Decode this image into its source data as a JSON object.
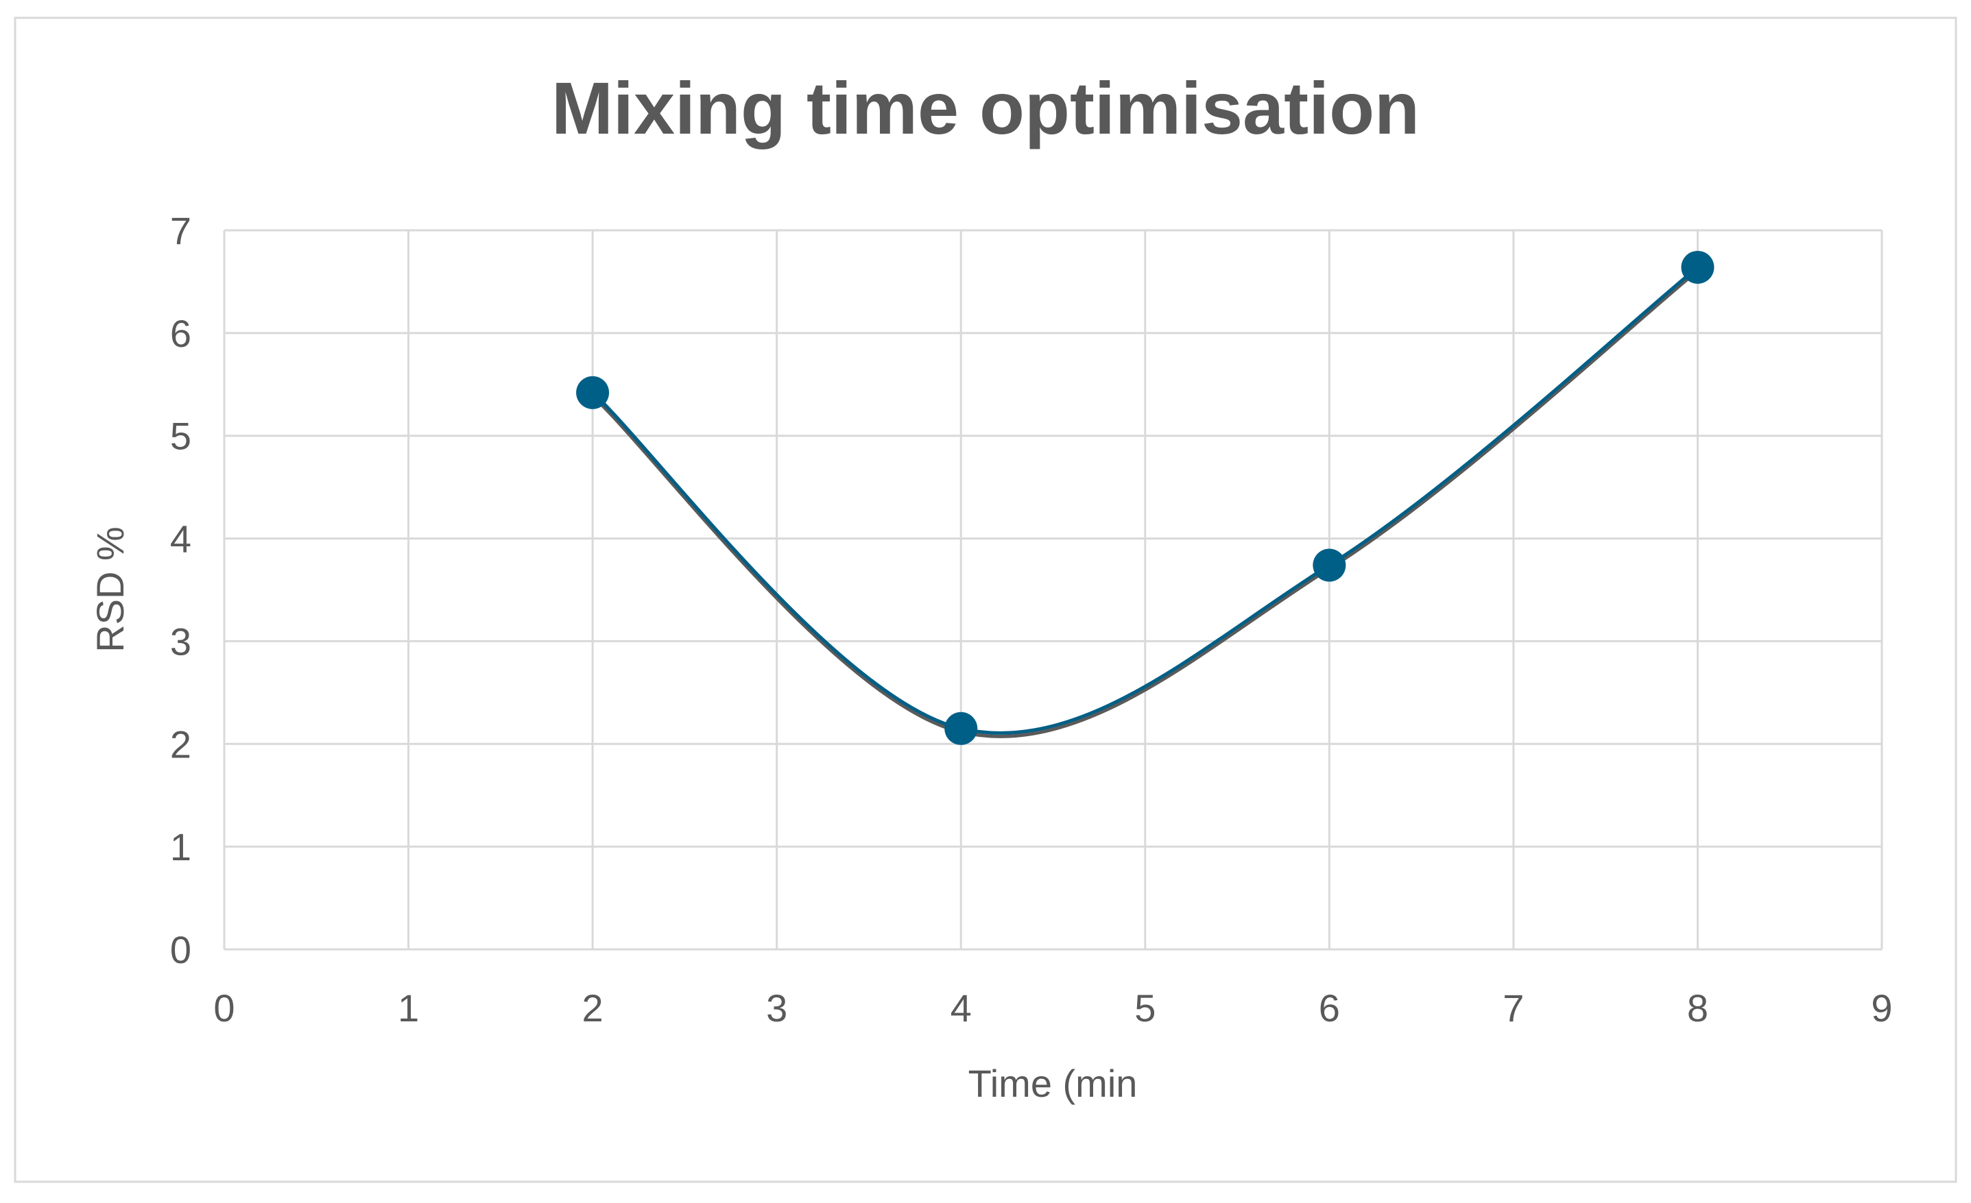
{
  "chart_data": {
    "type": "scatter",
    "title": "Mixing time optimisation",
    "xlabel": "Time (min",
    "ylabel": "RSD %",
    "xlim": [
      0,
      9
    ],
    "ylim": [
      0,
      7
    ],
    "x_ticks": [
      0,
      1,
      2,
      3,
      4,
      5,
      6,
      7,
      8,
      9
    ],
    "y_ticks": [
      0,
      1,
      2,
      3,
      4,
      5,
      6,
      7
    ],
    "grid": true,
    "smooth_line": true,
    "series": [
      {
        "x": [
          2,
          4,
          6,
          8
        ],
        "y": [
          5.42,
          2.15,
          3.74,
          6.64
        ]
      }
    ]
  },
  "colors": {
    "marker": "#005f86",
    "line": "#005f86",
    "line_shadow": "#5a5a5a",
    "grid": "#d9d9d9",
    "text": "#595959",
    "border": "#d9d9d9"
  }
}
